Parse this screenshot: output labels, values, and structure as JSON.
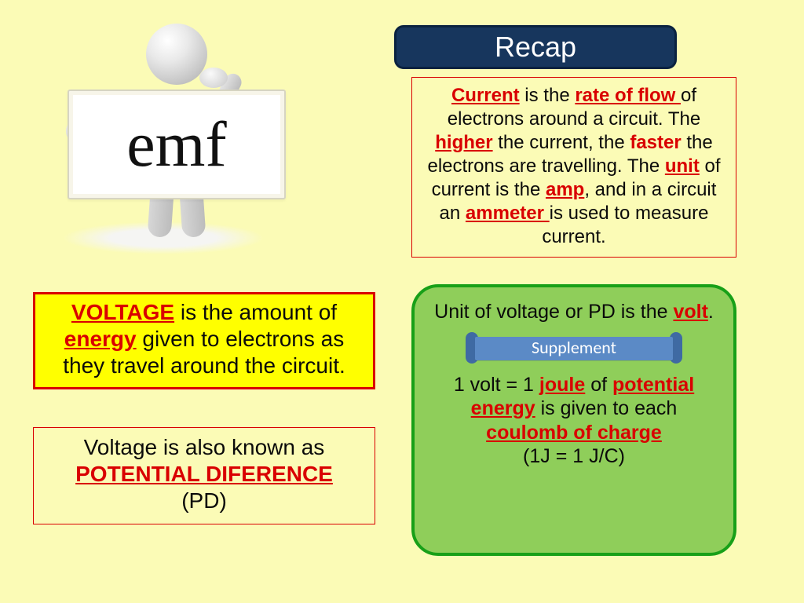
{
  "colors": {
    "page_bg": "#fbfbb6",
    "red": "#d90000",
    "yellow": "#ffff00",
    "header_bg": "#17365d",
    "header_border": "#0a2240",
    "green_fill": "#8fce5a",
    "green_border": "#18a018",
    "supplement_bar": "#5b8ac6",
    "supplement_cap": "#3f6aa3",
    "white": "#ffffff",
    "text": "#0a0a0a"
  },
  "sign": {
    "text": "emf",
    "fontsize": 82
  },
  "recap": {
    "title": "Recap",
    "fontsize": 36
  },
  "current_box": {
    "fontsize": 24,
    "parts": {
      "t1": "Current",
      "t2": " is the ",
      "t3": "rate of flow ",
      "t4": "of electrons around a circuit. The ",
      "t5": "higher",
      "t6": " the current, the ",
      "t7": "faster",
      "t8": " the electrons are travelling.  The ",
      "t9": "unit",
      "t10": " of current is the ",
      "t11": "amp",
      "t12": ", and in a circuit an ",
      "t13": "ammeter ",
      "t14": "is used to measure current."
    }
  },
  "voltage_box": {
    "fontsize": 28,
    "parts": {
      "t1": "VOLTAGE",
      "t2": " is the amount of ",
      "t3": "energy",
      "t4": " given to electrons as they travel around the circuit."
    }
  },
  "pd_box": {
    "fontsize": 28,
    "parts": {
      "t1": "Voltage is also known as ",
      "t2": "POTENTIAL DIFERENCE",
      "t3": "(PD)"
    }
  },
  "green_box": {
    "fontsize": 25,
    "line1": {
      "t1": "Unit of voltage or PD is the ",
      "t2": "volt",
      "t3": "."
    },
    "supplement_label": "Supplement",
    "line2": {
      "t1": "1 volt = 1 ",
      "t2": "joule",
      "t3": " of ",
      "t4": "potential energy",
      "t5": " is given to each ",
      "t6": "coulomb of charge"
    },
    "line3": "(1J = 1 J/C)"
  }
}
